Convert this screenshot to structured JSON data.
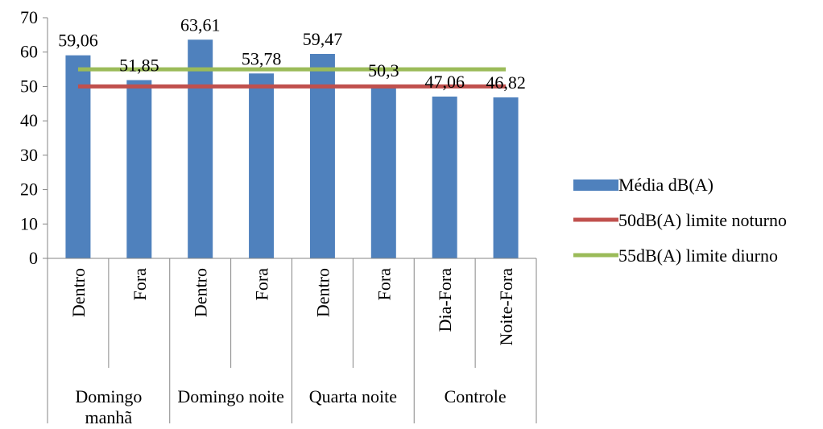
{
  "chart_data": {
    "type": "bar",
    "categories": [
      "Dentro",
      "Fora",
      "Dentro",
      "Fora",
      "Dentro",
      "Fora",
      "Dia-Fora",
      "Noite-Fora"
    ],
    "groups": [
      {
        "label": "Domingo manhã",
        "span": 2
      },
      {
        "label": "Domingo noite",
        "span": 2
      },
      {
        "label": "Quarta noite",
        "span": 2
      },
      {
        "label": "Controle",
        "span": 2
      }
    ],
    "series": [
      {
        "name": "Média dB(A)",
        "type": "bar",
        "color": "#4F81BD",
        "values": [
          59.06,
          51.85,
          63.61,
          53.78,
          59.47,
          50.3,
          47.06,
          46.82
        ]
      },
      {
        "name": "50dB(A) limite noturno",
        "type": "line",
        "color": "#C0504D",
        "values": [
          50,
          50,
          50,
          50,
          50,
          50,
          50,
          50
        ]
      },
      {
        "name": "55dB(A) limite diurno",
        "type": "line",
        "color": "#9BBB59",
        "values": [
          55,
          55,
          55,
          55,
          55,
          55,
          55,
          55
        ]
      }
    ],
    "data_labels": [
      "59,06",
      "51,85",
      "63,61",
      "53,78",
      "59,47",
      "50,3",
      "47,06",
      "46,82"
    ],
    "y_ticks": [
      "0",
      "10",
      "20",
      "30",
      "40",
      "50",
      "60",
      "70"
    ],
    "ylim": [
      0,
      70
    ],
    "title": "",
    "xlabel": "",
    "ylabel": "",
    "grid": false,
    "legend_position": "right"
  }
}
